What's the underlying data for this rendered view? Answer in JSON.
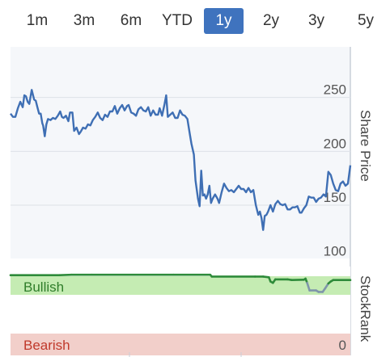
{
  "range_tabs": {
    "items": [
      "1m",
      "3m",
      "6m",
      "YTD",
      "1y",
      "2y",
      "3y",
      "5y"
    ],
    "active": "1y"
  },
  "colors": {
    "accent": "#3f73be",
    "price_line": "#3f6fb4",
    "stockrank_line": "#2e8b3a",
    "stockrank_line_weak": "#7f96aa",
    "bullish_zone": "#c5ecb3",
    "bearish_zone": "#f2cfca",
    "bullish_text": "#2f7d2a",
    "bearish_text": "#c0392b"
  },
  "chart_data": [
    {
      "type": "line",
      "name": "price",
      "ylabel": "Share Price",
      "yticks": [
        100,
        150,
        200,
        250
      ],
      "ylim": [
        95,
        275
      ],
      "xlim": [
        0,
        417
      ],
      "grid": true,
      "series": [
        {
          "values": [
            [
              0,
              235
            ],
            [
              3,
              232
            ],
            [
              6,
              232
            ],
            [
              9,
              240
            ],
            [
              12,
              246
            ],
            [
              15,
              241
            ],
            [
              17,
              252
            ],
            [
              19,
              251
            ],
            [
              21,
              246
            ],
            [
              23,
              244
            ],
            [
              26,
              257
            ],
            [
              29,
              248
            ],
            [
              31,
              247
            ],
            [
              33,
              241
            ],
            [
              35,
              235
            ],
            [
              37,
              235
            ],
            [
              39,
              226
            ],
            [
              40,
              224
            ],
            [
              42,
              214
            ],
            [
              44,
              225
            ],
            [
              46,
              230
            ],
            [
              49,
              229
            ],
            [
              52,
              231
            ],
            [
              55,
              230
            ],
            [
              58,
              233
            ],
            [
              61,
              237
            ],
            [
              63,
              232
            ],
            [
              65,
              231
            ],
            [
              68,
              233
            ],
            [
              71,
              228
            ],
            [
              73,
              236
            ],
            [
              76,
              236
            ],
            [
              78,
              219
            ],
            [
              81,
              222
            ],
            [
              84,
              216
            ],
            [
              86,
              218
            ],
            [
              89,
              222
            ],
            [
              92,
              221
            ],
            [
              95,
              225
            ],
            [
              98,
              224
            ],
            [
              101,
              229
            ],
            [
              104,
              232
            ],
            [
              107,
              236
            ],
            [
              110,
              231
            ],
            [
              113,
              229
            ],
            [
              116,
              234
            ],
            [
              119,
              232
            ],
            [
              122,
              237
            ],
            [
              125,
              237
            ],
            [
              128,
              242
            ],
            [
              131,
              235
            ],
            [
              134,
              240
            ],
            [
              137,
              243
            ],
            [
              140,
              238
            ],
            [
              143,
              242
            ],
            [
              145,
              243
            ],
            [
              148,
              236
            ],
            [
              151,
              235
            ],
            [
              154,
              233
            ],
            [
              157,
              239
            ],
            [
              160,
              241
            ],
            [
              163,
              238
            ],
            [
              166,
              237
            ],
            [
              169,
              241
            ],
            [
              172,
              233
            ],
            [
              175,
              238
            ],
            [
              178,
              234
            ],
            [
              181,
              234
            ],
            [
              183,
              240
            ],
            [
              186,
              233
            ],
            [
              189,
              244
            ],
            [
              191,
              252
            ],
            [
              193,
              232
            ],
            [
              196,
              234
            ],
            [
              199,
              236
            ],
            [
              202,
              231
            ],
            [
              205,
              231
            ],
            [
              208,
              238
            ],
            [
              211,
              234
            ],
            [
              214,
              233
            ],
            [
              217,
              230
            ],
            [
              220,
              216
            ],
            [
              222,
              207
            ],
            [
              225,
              197
            ],
            [
              227,
              173
            ],
            [
              230,
              156
            ],
            [
              232,
              149
            ],
            [
              234,
              182
            ],
            [
              236,
              159
            ],
            [
              238,
              160
            ],
            [
              240,
              156
            ],
            [
              242,
              160
            ],
            [
              244,
              168
            ],
            [
              246,
              152
            ],
            [
              248,
              156
            ],
            [
              251,
              160
            ],
            [
              254,
              156
            ],
            [
              256,
              152
            ],
            [
              259,
              162
            ],
            [
              262,
              170
            ],
            [
              265,
              166
            ],
            [
              268,
              163
            ],
            [
              271,
              164
            ],
            [
              274,
              162
            ],
            [
              277,
              165
            ],
            [
              280,
              168
            ],
            [
              283,
              165
            ],
            [
              286,
              165
            ],
            [
              289,
              162
            ],
            [
              292,
              166
            ],
            [
              295,
              162
            ],
            [
              298,
              164
            ],
            [
              301,
              150
            ],
            [
              304,
              141
            ],
            [
              306,
              144
            ],
            [
              308,
              138
            ],
            [
              310,
              127
            ],
            [
              312,
              140
            ],
            [
              314,
              141
            ],
            [
              316,
              144
            ],
            [
              319,
              150
            ],
            [
              322,
              144
            ],
            [
              325,
              151
            ],
            [
              328,
              154
            ],
            [
              331,
              151
            ],
            [
              334,
              150
            ],
            [
              337,
              151
            ],
            [
              340,
              146
            ],
            [
              343,
              146
            ],
            [
              346,
              148
            ],
            [
              349,
              148
            ],
            [
              352,
              149
            ],
            [
              355,
              143
            ],
            [
              357,
              143
            ],
            [
              360,
              147
            ],
            [
              363,
              150
            ],
            [
              366,
              158
            ],
            [
              369,
              157
            ],
            [
              372,
              157
            ],
            [
              375,
              153
            ],
            [
              378,
              156
            ],
            [
              381,
              157
            ],
            [
              384,
              160
            ],
            [
              387,
              158
            ],
            [
              390,
              181
            ],
            [
              393,
              178
            ],
            [
              396,
              170
            ],
            [
              399,
              164
            ],
            [
              402,
              163
            ],
            [
              405,
              170
            ],
            [
              408,
              172
            ],
            [
              411,
              168
            ],
            [
              414,
              170
            ],
            [
              417,
              187
            ]
          ]
        }
      ]
    },
    {
      "type": "line",
      "name": "stockrank",
      "ylabel": "StockRank",
      "yticks": [
        0
      ],
      "ylim": [
        0,
        100
      ],
      "zones": [
        {
          "label": "Bullish",
          "range": [
            80,
            100
          ],
          "color": "#c5ecb3"
        },
        {
          "label": "Bearish",
          "range": [
            0,
            20
          ],
          "color": "#f2cfca"
        }
      ],
      "series": [
        {
          "values": [
            [
              0,
              98
            ],
            [
              60,
              98
            ],
            [
              75,
              98.6
            ],
            [
              100,
              98.6
            ],
            [
              200,
              98.6
            ],
            [
              245,
              98.6
            ],
            [
              247,
              96
            ],
            [
              300,
              96
            ],
            [
              310,
              96
            ],
            [
              317,
              95
            ],
            [
              319,
              89
            ],
            [
              322,
              87
            ],
            [
              325,
              92
            ],
            [
              340,
              92
            ],
            [
              345,
              91
            ],
            [
              360,
              91.5
            ],
            [
              362,
              93
            ],
            [
              364,
              87
            ],
            [
              367,
              76
            ],
            [
              375,
              76
            ],
            [
              378,
              74
            ],
            [
              383,
              74
            ],
            [
              386,
              79
            ],
            [
              390,
              86
            ],
            [
              393,
              89
            ],
            [
              396,
              91
            ],
            [
              417,
              91
            ]
          ]
        }
      ]
    }
  ]
}
